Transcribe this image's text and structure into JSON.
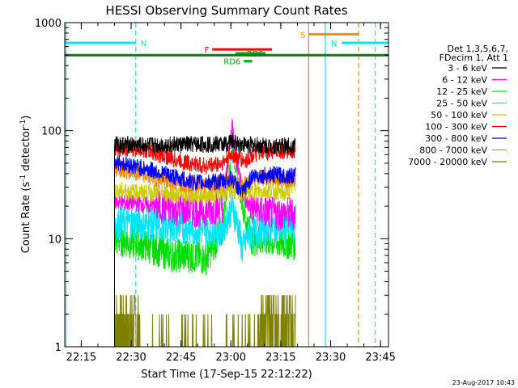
{
  "chart_data": {
    "type": "line",
    "title": "HESSI Observing Summary Count Rates",
    "xlabel": "Start Time (17-Sep-15 22:12:22)",
    "ylabel": "Count Rate (s⁻¹ detector⁻¹)",
    "ylabel_main": "Count Rate (s",
    "ylabel_sup1": "-1",
    "ylabel_mid": " detector",
    "ylabel_sup2": "-1",
    "ylabel_end": ")",
    "y_scale": "log",
    "ylim": [
      1,
      1000
    ],
    "xlim_minutes": [
      -2.37,
      95.0
    ],
    "x_origin": "22:12:22",
    "x_ticks": [
      {
        "minute": 2.6,
        "label": "22:15"
      },
      {
        "minute": 17.6,
        "label": "22:30"
      },
      {
        "minute": 32.6,
        "label": "22:45"
      },
      {
        "minute": 47.6,
        "label": "23:00"
      },
      {
        "minute": 62.6,
        "label": "23:15"
      },
      {
        "minute": 77.6,
        "label": "23:30"
      },
      {
        "minute": 92.6,
        "label": "23:45"
      }
    ],
    "y_ticks": [
      {
        "value": 1,
        "label": "1"
      },
      {
        "value": 10,
        "label": "10"
      },
      {
        "value": 100,
        "label": "100"
      },
      {
        "value": 1000,
        "label": "1000"
      }
    ],
    "grid": false,
    "legend_position": "right",
    "legend_header": [
      "Det 1,3,5,6,7,",
      "FDecim 1, Att 1"
    ],
    "series": [
      {
        "name": "3 - 6 keV",
        "color": "#000000",
        "values_by_minute": [
          [
            12.6,
            75
          ],
          [
            20,
            73
          ],
          [
            30,
            74
          ],
          [
            40,
            75
          ],
          [
            46,
            75
          ],
          [
            48,
            80
          ],
          [
            50,
            75
          ],
          [
            60,
            72
          ],
          [
            67,
            73
          ]
        ]
      },
      {
        "name": "6 - 12 keV",
        "color": "#ff00ff",
        "values_by_minute": [
          [
            12.6,
            22
          ],
          [
            20,
            21
          ],
          [
            30,
            19
          ],
          [
            40,
            18
          ],
          [
            45,
            20
          ],
          [
            47,
            60
          ],
          [
            48,
            120
          ],
          [
            49,
            60
          ],
          [
            51,
            30
          ],
          [
            52,
            22
          ],
          [
            54,
            19
          ],
          [
            60,
            17
          ],
          [
            67,
            17
          ]
        ]
      },
      {
        "name": "12 - 25 keV",
        "color": "#00dd00",
        "values_by_minute": [
          [
            12.6,
            10
          ],
          [
            20,
            9
          ],
          [
            25,
            8
          ],
          [
            30,
            7
          ],
          [
            35,
            7
          ],
          [
            40,
            6.5
          ],
          [
            45,
            12
          ],
          [
            48,
            70
          ],
          [
            50,
            30
          ],
          [
            52,
            15
          ],
          [
            54,
            10
          ],
          [
            60,
            9.5
          ],
          [
            67,
            9
          ]
        ]
      },
      {
        "name": "25 - 50 keV",
        "color": "#00e5ff",
        "values_by_minute": [
          [
            12.6,
            14
          ],
          [
            20,
            14
          ],
          [
            30,
            13
          ],
          [
            40,
            12
          ],
          [
            45,
            12
          ],
          [
            48,
            20
          ],
          [
            50,
            12
          ],
          [
            51,
            8
          ],
          [
            53,
            11
          ],
          [
            60,
            13
          ],
          [
            67,
            13
          ]
        ]
      },
      {
        "name": "50 - 100 keV",
        "color": "#cccc00",
        "values_by_minute": [
          [
            12.6,
            28
          ],
          [
            20,
            27
          ],
          [
            30,
            26
          ],
          [
            40,
            25
          ],
          [
            45,
            27
          ],
          [
            48,
            28
          ],
          [
            50,
            26
          ],
          [
            52,
            27
          ],
          [
            60,
            28
          ],
          [
            64,
            26
          ],
          [
            67,
            32
          ]
        ]
      },
      {
        "name": "100 - 300 keV",
        "color": "#ff0000",
        "values_by_minute": [
          [
            12.6,
            70
          ],
          [
            20,
            68
          ],
          [
            25,
            62
          ],
          [
            30,
            55
          ],
          [
            35,
            50
          ],
          [
            40,
            47
          ],
          [
            45,
            50
          ],
          [
            48,
            60
          ],
          [
            50,
            55
          ],
          [
            52,
            52
          ],
          [
            54,
            60
          ],
          [
            60,
            65
          ],
          [
            67,
            66
          ]
        ]
      },
      {
        "name": "300 - 800 keV",
        "color": "#0000ff",
        "values_by_minute": [
          [
            12.6,
            52
          ],
          [
            20,
            46
          ],
          [
            25,
            42
          ],
          [
            30,
            38
          ],
          [
            35,
            34
          ],
          [
            40,
            33
          ],
          [
            45,
            34
          ],
          [
            48,
            36
          ],
          [
            51,
            26
          ],
          [
            54,
            38
          ],
          [
            60,
            39
          ],
          [
            67,
            38
          ]
        ]
      },
      {
        "name": "800 - 7000 keV",
        "color": "#ff8c00",
        "values_by_minute": [
          [
            12.6,
            45
          ],
          [
            20,
            40
          ],
          [
            25,
            36
          ],
          [
            30,
            33
          ],
          [
            35,
            32
          ],
          [
            40,
            31
          ],
          [
            45,
            33
          ],
          [
            48,
            34
          ],
          [
            51,
            30
          ],
          [
            54,
            37
          ],
          [
            60,
            36
          ],
          [
            67,
            35
          ]
        ]
      },
      {
        "name": "7000 - 20000 keV",
        "color": "#808000",
        "values_by_minute": [
          [
            12.6,
            2
          ],
          [
            20,
            1.5
          ],
          [
            30,
            1
          ],
          [
            40,
            1
          ],
          [
            50,
            1
          ],
          [
            55,
            1.5
          ],
          [
            60,
            2
          ],
          [
            67,
            2
          ]
        ]
      }
    ],
    "state_bars": [
      {
        "label": "N",
        "color": "#00e5ff",
        "start_minute": -2.37,
        "end_minute": 19.0,
        "level": 650
      },
      {
        "label": "N",
        "color": "#00e5ff",
        "start_minute": 81.0,
        "end_minute": 95.0,
        "level": 650
      },
      {
        "label": "S",
        "color": "#ff8c00",
        "start_minute": 71.0,
        "end_minute": 86.0,
        "level": 780
      },
      {
        "label": "F",
        "color": "#ff0000",
        "start_minute": 42.0,
        "end_minute": 60.0,
        "level": 565
      },
      {
        "label": "RD5",
        "color": "#00aa00",
        "start_minute": 49.0,
        "end_minute": 58.0,
        "level": 520
      },
      {
        "label": "RD6",
        "color": "#00aa00",
        "start_minute": 51.5,
        "end_minute": 54.0,
        "level": 440
      },
      {
        "label": "",
        "color": "#008000",
        "start_minute": -2.37,
        "end_minute": 95.0,
        "level": 500
      }
    ],
    "vertical_lines": [
      {
        "minute": -2.0,
        "color": "#00e5ff",
        "style": "solid"
      },
      {
        "minute": 19.0,
        "color": "#00e5ff",
        "style": "dashed"
      },
      {
        "minute": 71.0,
        "color": "#ff8c00",
        "style": "solid"
      },
      {
        "minute": 76.0,
        "color": "#00e5ff",
        "style": "solid"
      },
      {
        "minute": 86.0,
        "color": "#ff8c00",
        "style": "dashed"
      },
      {
        "minute": 91.0,
        "color": "#00e5ff",
        "style": "dashed"
      }
    ],
    "timestamp": "23-Aug-2017 10:43"
  }
}
